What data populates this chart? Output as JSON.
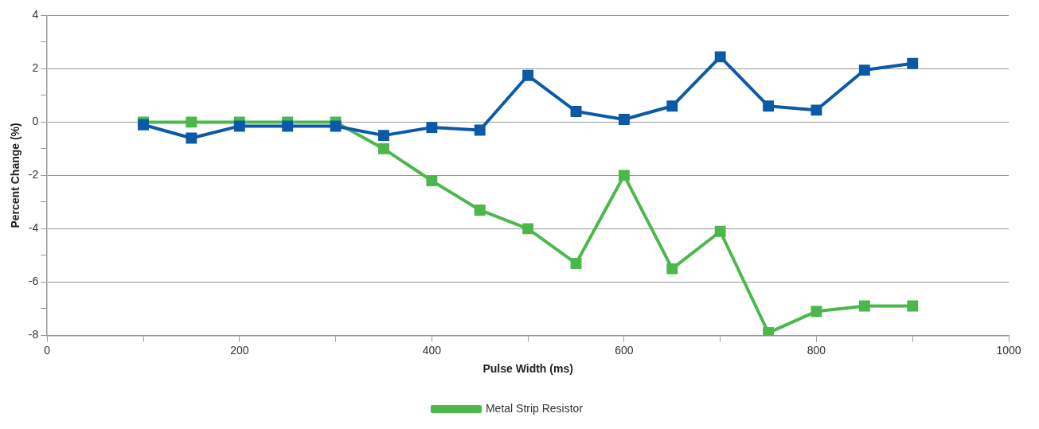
{
  "chart_data": {
    "type": "line",
    "xlabel": "Pulse Width (ms)",
    "ylabel": "Percent Change (%)",
    "x": [
      100,
      150,
      200,
      250,
      300,
      350,
      400,
      450,
      500,
      550,
      600,
      650,
      700,
      750,
      800,
      850,
      900
    ],
    "series": [
      {
        "color": "#0a5aa8",
        "values": [
          -0.1,
          -0.6,
          -0.15,
          -0.15,
          -0.15,
          -0.5,
          -0.2,
          -0.3,
          1.75,
          0.4,
          0.1,
          0.6,
          2.45,
          0.6,
          0.45,
          1.95,
          2.2
        ]
      },
      {
        "name": "Metal Strip Resistor",
        "color": "#4cb84c",
        "values": [
          0,
          0,
          0,
          0,
          0,
          -1.0,
          -2.2,
          -3.3,
          -4.0,
          -5.3,
          -2.0,
          -5.5,
          -4.1,
          -7.9,
          -7.1,
          -6.9,
          -6.9
        ]
      }
    ],
    "xlim": [
      0,
      1000
    ],
    "xticks": [
      0,
      {
        "value": 100,
        "label": null
      },
      200,
      {
        "value": 300,
        "label": null
      },
      400,
      {
        "value": 500,
        "label": null
      },
      600,
      {
        "value": 700,
        "label": null
      },
      800,
      {
        "value": 900,
        "label": null
      },
      1000
    ],
    "ylim": [
      -8,
      4
    ],
    "yticks": [
      -8,
      {
        "value": -7,
        "label": null
      },
      -6,
      {
        "value": -5,
        "label": null
      },
      -4,
      {
        "value": -3,
        "label": null
      },
      -2,
      {
        "value": -1,
        "label": null
      },
      0,
      {
        "value": 1,
        "label": null
      },
      2,
      {
        "value": 3,
        "label": null
      },
      4
    ],
    "grid": "y",
    "legend": "bottom",
    "marker": "square",
    "line_style": "solid"
  }
}
